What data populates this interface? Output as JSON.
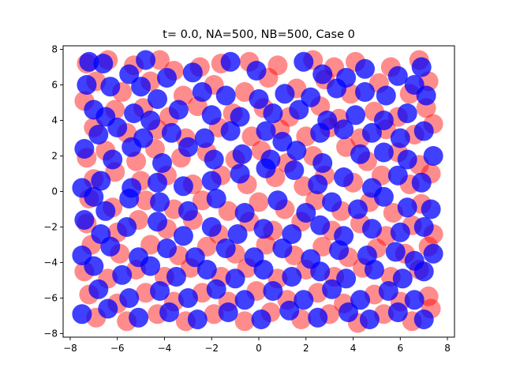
{
  "chart_data": {
    "type": "scatter",
    "title": "t= 0.0, NA=500, NB=500, Case 0",
    "xlabel": "",
    "ylabel": "",
    "xlim": [
      -8.3,
      8.3
    ],
    "ylim": [
      -8.2,
      8.2
    ],
    "xticks": [
      -8,
      -6,
      -4,
      -2,
      0,
      2,
      4,
      6,
      8
    ],
    "xtick_labels": [
      "−8",
      "−6",
      "−4",
      "−2",
      "0",
      "2",
      "4",
      "6",
      "8"
    ],
    "yticks": [
      -8,
      -6,
      -4,
      -2,
      0,
      2,
      4,
      6,
      8
    ],
    "ytick_labels": [
      "−8",
      "−6",
      "−4",
      "−2",
      "0",
      "2",
      "4",
      "6",
      "8"
    ],
    "grid": false,
    "series": [
      {
        "color": "#ff0000",
        "alpha": 0.45,
        "points": [
          [
            -7.3,
            7.2
          ],
          [
            -6.4,
            7.4
          ],
          [
            -5.3,
            7.1
          ],
          [
            -4.2,
            7.4
          ],
          [
            -3.6,
            6.8
          ],
          [
            -2.5,
            7.0
          ],
          [
            -1.6,
            7.2
          ],
          [
            -0.4,
            7.3
          ],
          [
            0.8,
            7.1
          ],
          [
            2.3,
            7.4
          ],
          [
            3.2,
            7.0
          ],
          [
            4.1,
            7.3
          ],
          [
            5.6,
            7.0
          ],
          [
            6.8,
            7.4
          ],
          [
            -6.9,
            6.2
          ],
          [
            -5.8,
            5.6
          ],
          [
            -4.6,
            6.2
          ],
          [
            -3.2,
            5.4
          ],
          [
            -1.9,
            6.0
          ],
          [
            -0.6,
            5.6
          ],
          [
            0.4,
            6.4
          ],
          [
            1.6,
            5.8
          ],
          [
            2.8,
            6.3
          ],
          [
            3.9,
            5.5
          ],
          [
            5.1,
            6.1
          ],
          [
            6.4,
            5.5
          ],
          [
            7.2,
            6.2
          ],
          [
            -7.4,
            5.1
          ],
          [
            -6.1,
            4.6
          ],
          [
            -4.9,
            4.7
          ],
          [
            -3.8,
            4.2
          ],
          [
            -2.6,
            4.8
          ],
          [
            -1.1,
            4.4
          ],
          [
            0.2,
            4.7
          ],
          [
            1.3,
            4.2
          ],
          [
            2.6,
            4.8
          ],
          [
            3.4,
            4.1
          ],
          [
            4.9,
            4.5
          ],
          [
            5.9,
            4.2
          ],
          [
            7.1,
            4.7
          ],
          [
            -7.0,
            3.6
          ],
          [
            -5.6,
            3.3
          ],
          [
            -4.3,
            3.5
          ],
          [
            -3.1,
            3.0
          ],
          [
            -1.7,
            3.6
          ],
          [
            -0.3,
            3.1
          ],
          [
            0.9,
            3.5
          ],
          [
            2.0,
            3.1
          ],
          [
            3.0,
            3.6
          ],
          [
            4.3,
            3.0
          ],
          [
            5.4,
            3.5
          ],
          [
            6.6,
            3.2
          ],
          [
            7.4,
            3.8
          ],
          [
            -7.3,
            1.9
          ],
          [
            -6.5,
            2.3
          ],
          [
            -5.2,
            1.7
          ],
          [
            -4.4,
            2.4
          ],
          [
            -3.3,
            1.9
          ],
          [
            -2.2,
            2.2
          ],
          [
            -1.0,
            1.8
          ],
          [
            0.1,
            2.3
          ],
          [
            1.2,
            1.6
          ],
          [
            2.3,
            2.0
          ],
          [
            3.7,
            2.5
          ],
          [
            4.6,
            1.7
          ],
          [
            5.9,
            2.2
          ],
          [
            6.8,
            1.5
          ],
          [
            -7.0,
            0.7
          ],
          [
            -6.1,
            1.1
          ],
          [
            -5.0,
            0.6
          ],
          [
            -3.9,
            0.9
          ],
          [
            -2.8,
            0.4
          ],
          [
            -1.6,
            0.9
          ],
          [
            -0.5,
            0.4
          ],
          [
            0.7,
            0.8
          ],
          [
            1.9,
            0.3
          ],
          [
            2.8,
            0.9
          ],
          [
            4.0,
            0.5
          ],
          [
            5.2,
            0.9
          ],
          [
            6.4,
            0.4
          ],
          [
            7.3,
            1.0
          ],
          [
            -7.2,
            -0.4
          ],
          [
            -6.2,
            -0.9
          ],
          [
            -4.8,
            -0.5
          ],
          [
            -3.6,
            -1.0
          ],
          [
            -2.4,
            -0.5
          ],
          [
            -1.3,
            -1.1
          ],
          [
            0.0,
            -0.6
          ],
          [
            1.1,
            -1.0
          ],
          [
            2.4,
            -0.5
          ],
          [
            3.5,
            -1.1
          ],
          [
            4.7,
            -0.6
          ],
          [
            5.7,
            -1.2
          ],
          [
            6.9,
            -0.7
          ],
          [
            -7.3,
            -1.8
          ],
          [
            -6.0,
            -2.3
          ],
          [
            -5.1,
            -1.6
          ],
          [
            -3.9,
            -2.1
          ],
          [
            -2.8,
            -1.6
          ],
          [
            -1.7,
            -2.4
          ],
          [
            -0.4,
            -1.7
          ],
          [
            0.6,
            -2.2
          ],
          [
            1.8,
            -1.7
          ],
          [
            3.1,
            -2.2
          ],
          [
            4.3,
            -1.8
          ],
          [
            5.4,
            -2.5
          ],
          [
            6.5,
            -1.9
          ],
          [
            7.4,
            -2.4
          ],
          [
            -7.1,
            -3.0
          ],
          [
            -5.9,
            -3.5
          ],
          [
            -4.6,
            -3.0
          ],
          [
            -3.4,
            -3.6
          ],
          [
            -2.2,
            -3.1
          ],
          [
            -1.0,
            -3.5
          ],
          [
            0.3,
            -3.0
          ],
          [
            1.5,
            -3.6
          ],
          [
            2.7,
            -3.1
          ],
          [
            3.8,
            -3.7
          ],
          [
            5.0,
            -3.2
          ],
          [
            6.2,
            -3.5
          ],
          [
            7.2,
            -3.1
          ],
          [
            -7.4,
            -4.5
          ],
          [
            -6.4,
            -4.9
          ],
          [
            -5.2,
            -4.4
          ],
          [
            -4.0,
            -4.8
          ],
          [
            -2.9,
            -4.3
          ],
          [
            -1.6,
            -4.8
          ],
          [
            -0.5,
            -4.3
          ],
          [
            0.8,
            -4.9
          ],
          [
            2.0,
            -4.4
          ],
          [
            3.2,
            -4.8
          ],
          [
            4.4,
            -4.3
          ],
          [
            5.6,
            -4.8
          ],
          [
            6.8,
            -4.4
          ],
          [
            -7.2,
            -5.8
          ],
          [
            -6.0,
            -6.3
          ],
          [
            -4.8,
            -5.7
          ],
          [
            -3.6,
            -6.2
          ],
          [
            -2.4,
            -5.7
          ],
          [
            -1.3,
            -6.2
          ],
          [
            -0.1,
            -5.6
          ],
          [
            1.2,
            -6.1
          ],
          [
            2.5,
            -5.7
          ],
          [
            3.6,
            -6.3
          ],
          [
            4.9,
            -5.8
          ],
          [
            6.0,
            -6.2
          ],
          [
            7.2,
            -5.9
          ],
          [
            -6.9,
            -7.1
          ],
          [
            -5.6,
            -7.3
          ],
          [
            -4.3,
            -6.9
          ],
          [
            -3.1,
            -7.3
          ],
          [
            -1.9,
            -6.9
          ],
          [
            -0.6,
            -7.3
          ],
          [
            0.5,
            -6.8
          ],
          [
            1.8,
            -7.2
          ],
          [
            3.0,
            -6.9
          ],
          [
            4.2,
            -7.4
          ],
          [
            5.3,
            -6.9
          ],
          [
            6.5,
            -7.3
          ],
          [
            7.3,
            -6.6
          ]
        ]
      },
      {
        "color": "#0000ff",
        "alpha": 0.75,
        "points": [
          [
            -7.2,
            7.3
          ],
          [
            -6.6,
            7.2
          ],
          [
            -5.5,
            6.6
          ],
          [
            -4.8,
            7.4
          ],
          [
            -3.9,
            6.4
          ],
          [
            -2.8,
            6.7
          ],
          [
            -1.2,
            7.3
          ],
          [
            -0.1,
            6.8
          ],
          [
            1.9,
            7.3
          ],
          [
            2.7,
            6.6
          ],
          [
            3.7,
            6.4
          ],
          [
            4.5,
            6.9
          ],
          [
            5.9,
            6.5
          ],
          [
            6.9,
            7.0
          ],
          [
            -7.3,
            6.0
          ],
          [
            -6.3,
            5.9
          ],
          [
            -5.0,
            5.9
          ],
          [
            -4.3,
            5.2
          ],
          [
            -2.4,
            5.6
          ],
          [
            -1.4,
            5.4
          ],
          [
            0.0,
            5.2
          ],
          [
            1.1,
            5.5
          ],
          [
            2.2,
            5.3
          ],
          [
            3.3,
            5.8
          ],
          [
            4.5,
            5.6
          ],
          [
            5.4,
            5.4
          ],
          [
            6.6,
            6.0
          ],
          [
            7.1,
            5.4
          ],
          [
            -7.0,
            4.6
          ],
          [
            -6.5,
            4.2
          ],
          [
            -5.3,
            4.4
          ],
          [
            -4.6,
            4.0
          ],
          [
            -3.4,
            4.6
          ],
          [
            -2.0,
            4.3
          ],
          [
            -0.8,
            4.2
          ],
          [
            0.6,
            4.4
          ],
          [
            1.7,
            4.6
          ],
          [
            2.9,
            4.0
          ],
          [
            4.1,
            4.3
          ],
          [
            5.3,
            4.0
          ],
          [
            6.3,
            4.4
          ],
          [
            -6.8,
            3.2
          ],
          [
            -6.0,
            3.6
          ],
          [
            -4.9,
            3.0
          ],
          [
            -3.7,
            3.3
          ],
          [
            -2.3,
            3.0
          ],
          [
            -1.2,
            3.4
          ],
          [
            0.3,
            3.4
          ],
          [
            1.0,
            2.8
          ],
          [
            2.6,
            3.3
          ],
          [
            3.6,
            3.5
          ],
          [
            4.8,
            3.3
          ],
          [
            6.0,
            3.0
          ],
          [
            7.0,
            3.4
          ],
          [
            -7.4,
            2.4
          ],
          [
            -6.2,
            1.8
          ],
          [
            -5.4,
            2.5
          ],
          [
            -4.1,
            1.6
          ],
          [
            -3.0,
            2.5
          ],
          [
            -1.9,
            1.8
          ],
          [
            -0.7,
            2.1
          ],
          [
            0.5,
            1.8
          ],
          [
            1.6,
            2.3
          ],
          [
            2.7,
            1.6
          ],
          [
            4.3,
            2.1
          ],
          [
            5.3,
            2.2
          ],
          [
            6.3,
            1.8
          ],
          [
            7.4,
            2.0
          ],
          [
            -7.5,
            0.2
          ],
          [
            -6.7,
            0.6
          ],
          [
            -5.4,
            0.2
          ],
          [
            -4.3,
            0.5
          ],
          [
            -3.2,
            0.3
          ],
          [
            -2.0,
            0.6
          ],
          [
            -0.8,
            1.0
          ],
          [
            0.3,
            1.3
          ],
          [
            1.5,
            1.2
          ],
          [
            2.5,
            0.4
          ],
          [
            3.6,
            0.8
          ],
          [
            4.8,
            0.2
          ],
          [
            5.9,
            0.9
          ],
          [
            6.9,
            0.5
          ],
          [
            -7.0,
            -0.3
          ],
          [
            -6.5,
            -1.1
          ],
          [
            -5.5,
            -0.4
          ],
          [
            -4.2,
            -0.6
          ],
          [
            -3.0,
            -1.1
          ],
          [
            -1.8,
            -0.4
          ],
          [
            -0.6,
            -1.2
          ],
          [
            0.8,
            -0.5
          ],
          [
            2.0,
            -1.2
          ],
          [
            3.1,
            -0.6
          ],
          [
            4.2,
            -1.0
          ],
          [
            5.3,
            -0.3
          ],
          [
            6.3,
            -0.9
          ],
          [
            7.3,
            -1.0
          ],
          [
            -7.4,
            -1.6
          ],
          [
            -6.7,
            -2.4
          ],
          [
            -5.6,
            -2.0
          ],
          [
            -4.3,
            -1.7
          ],
          [
            -3.2,
            -2.5
          ],
          [
            -2.0,
            -2.0
          ],
          [
            -0.9,
            -2.4
          ],
          [
            0.2,
            -2.1
          ],
          [
            1.4,
            -2.4
          ],
          [
            2.6,
            -1.9
          ],
          [
            3.6,
            -2.5
          ],
          [
            4.8,
            -2.1
          ],
          [
            6.0,
            -2.3
          ],
          [
            7.0,
            -2.0
          ],
          [
            -7.5,
            -3.6
          ],
          [
            -6.3,
            -3.1
          ],
          [
            -5.1,
            -3.7
          ],
          [
            -3.9,
            -3.2
          ],
          [
            -2.7,
            -3.7
          ],
          [
            -1.4,
            -3.2
          ],
          [
            -0.2,
            -3.7
          ],
          [
            1.0,
            -3.2
          ],
          [
            2.2,
            -3.8
          ],
          [
            3.4,
            -3.3
          ],
          [
            4.6,
            -3.6
          ],
          [
            5.8,
            -3.4
          ],
          [
            6.6,
            -3.9
          ],
          [
            7.4,
            -3.5
          ],
          [
            -7.0,
            -4.2
          ],
          [
            -5.8,
            -4.7
          ],
          [
            -4.6,
            -4.2
          ],
          [
            -3.5,
            -4.8
          ],
          [
            -2.2,
            -4.4
          ],
          [
            -1.0,
            -4.9
          ],
          [
            0.2,
            -4.4
          ],
          [
            1.4,
            -4.8
          ],
          [
            2.6,
            -4.5
          ],
          [
            3.7,
            -4.9
          ],
          [
            4.9,
            -4.4
          ],
          [
            6.1,
            -4.9
          ],
          [
            7.0,
            -4.5
          ],
          [
            -6.8,
            -5.5
          ],
          [
            -5.5,
            -6.0
          ],
          [
            -4.2,
            -5.6
          ],
          [
            -3.0,
            -6.0
          ],
          [
            -1.8,
            -5.5
          ],
          [
            -0.6,
            -6.1
          ],
          [
            0.6,
            -5.6
          ],
          [
            1.9,
            -6.1
          ],
          [
            3.1,
            -5.5
          ],
          [
            4.3,
            -6.1
          ],
          [
            5.5,
            -5.6
          ],
          [
            6.6,
            -6.1
          ],
          [
            -7.5,
            -6.9
          ],
          [
            -6.4,
            -6.6
          ],
          [
            -5.1,
            -7.1
          ],
          [
            -3.8,
            -6.8
          ],
          [
            -2.6,
            -7.2
          ],
          [
            -1.3,
            -6.8
          ],
          [
            0.1,
            -7.2
          ],
          [
            1.3,
            -6.7
          ],
          [
            2.5,
            -7.1
          ],
          [
            3.8,
            -6.8
          ],
          [
            4.7,
            -7.2
          ],
          [
            5.9,
            -6.8
          ],
          [
            7.0,
            -7.2
          ]
        ]
      }
    ]
  }
}
